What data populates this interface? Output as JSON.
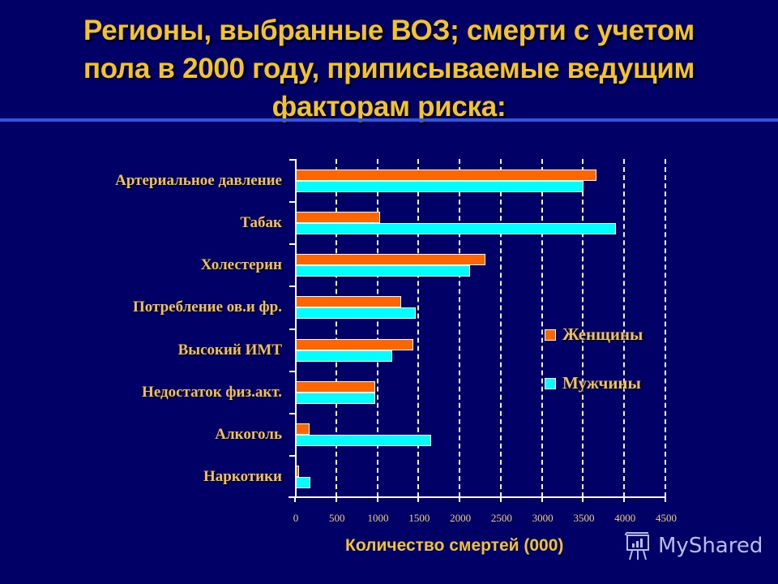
{
  "title": {
    "lines": [
      "Регионы, выбранные ВОЗ; смерти с учетом",
      "пола в 2000 году, приписываемые ведущим",
      "факторам риска:"
    ]
  },
  "colors": {
    "background": "#000066",
    "title": "#f2c230",
    "women": "#ff6600",
    "men": "#00ffff",
    "divider": "#3355dd"
  },
  "legend": {
    "women": "Женщины",
    "men": "Мужчины"
  },
  "x_axis_title": "Количество смертей (000)",
  "x_ticks": [
    "0",
    "500",
    "1000",
    "1500",
    "2000",
    "2500",
    "3000",
    "3500",
    "4000",
    "4500"
  ],
  "watermark": "MyShared",
  "chart_data": {
    "type": "bar",
    "orientation": "horizontal",
    "title": "Регионы, выбранные ВОЗ; смерти с учетом пола в 2000 году, приписываемые ведущим факторам риска:",
    "xlabel": "Количество смертей (000)",
    "ylabel": "",
    "xlim": [
      0,
      4500
    ],
    "x_tick_step": 500,
    "grid": "vertical dashed",
    "legend_position": "right, inside plot",
    "categories": [
      "Артериальное давление",
      "Табак",
      "Холестерин",
      "Потребление ов.и фр.",
      "Высокий ИМТ",
      "Недостаток физ.акт.",
      "Алкоголь",
      "Наркотики"
    ],
    "series": [
      {
        "name": "Женщины",
        "color": "#ff6600",
        "values": [
          3650,
          1020,
          2300,
          1280,
          1430,
          965,
          170,
          40
        ]
      },
      {
        "name": "Мужчины",
        "color": "#00ffff",
        "values": [
          3500,
          3890,
          2120,
          1460,
          1170,
          965,
          1640,
          175
        ]
      }
    ]
  }
}
